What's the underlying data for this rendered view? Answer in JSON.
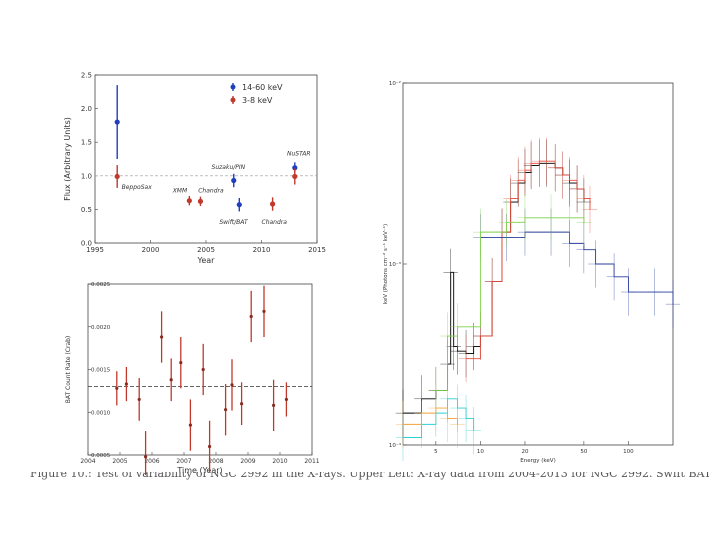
{
  "chart_data": [
    {
      "type": "scatter",
      "xlabel": "Year",
      "ylabel": "Flux (Arbitrary Units)",
      "xlim": [
        1995,
        2015
      ],
      "ylim": [
        0,
        2.5
      ],
      "x_ticks": [
        "1995",
        "2000",
        "2005",
        "2010",
        "2015"
      ],
      "y_ticks": [
        "0.0",
        "0.5",
        "1.0",
        "1.5",
        "2.0",
        "2.5"
      ],
      "reference_line": 1.0,
      "legend": "top-right",
      "series": [
        {
          "name": "14-60 keV",
          "color": "#1f3fbf",
          "points": [
            {
              "x": 1997,
              "y": 1.8,
              "err": 0.55
            },
            {
              "x": 2007.5,
              "y": 0.93,
              "err": 0.1
            },
            {
              "x": 2008,
              "y": 0.57,
              "err": 0.1
            },
            {
              "x": 2013,
              "y": 1.12,
              "err": 0.08
            }
          ]
        },
        {
          "name": "3-8 keV",
          "color": "#c0392b",
          "points": [
            {
              "x": 1997,
              "y": 0.99,
              "err": 0.17
            },
            {
              "x": 2003.5,
              "y": 0.63,
              "err": 0.07
            },
            {
              "x": 2004.5,
              "y": 0.62,
              "err": 0.07
            },
            {
              "x": 2011,
              "y": 0.58,
              "err": 0.1
            },
            {
              "x": 2013,
              "y": 0.99,
              "err": 0.12
            }
          ]
        }
      ],
      "annotations": [
        {
          "text": "BeppoSax",
          "x": 1997.4,
          "y": 0.8
        },
        {
          "text": "XMM",
          "x": 2002.0,
          "y": 0.75
        },
        {
          "text": "Chandra",
          "x": 2004.3,
          "y": 0.75
        },
        {
          "text": "Suzaku/PIN",
          "x": 2005.5,
          "y": 1.1
        },
        {
          "text": "Swift/BAT",
          "x": 2006.2,
          "y": 0.28
        },
        {
          "text": "Chandra",
          "x": 2010.0,
          "y": 0.28
        },
        {
          "text": "NuSTAR",
          "x": 2012.3,
          "y": 1.3
        }
      ]
    },
    {
      "type": "scatter",
      "xlabel": "Time (Year)",
      "ylabel": "BAT Count Rate (Crab)",
      "xlim": [
        2004,
        2011
      ],
      "ylim": [
        0.0005,
        0.0025
      ],
      "x_ticks": [
        "2004",
        "2005",
        "2006",
        "2007",
        "2008",
        "2009",
        "2010",
        "2011"
      ],
      "y_ticks": [
        "0.0005",
        "0.0010",
        "0.0015",
        "0.0020",
        "0.0025"
      ],
      "reference_line": 0.0013,
      "series": [
        {
          "name": "",
          "color": "#c0392b",
          "points": [
            {
              "x": 2004.9,
              "y": 0.00128,
              "err": 0.0002
            },
            {
              "x": 2005.2,
              "y": 0.00133,
              "err": 0.0002
            },
            {
              "x": 2005.6,
              "y": 0.00115,
              "err": 0.00025
            },
            {
              "x": 2005.8,
              "y": 0.00048,
              "err": 0.0003
            },
            {
              "x": 2006.3,
              "y": 0.00188,
              "err": 0.0003
            },
            {
              "x": 2006.6,
              "y": 0.00138,
              "err": 0.00025
            },
            {
              "x": 2006.9,
              "y": 0.00158,
              "err": 0.0003
            },
            {
              "x": 2007.2,
              "y": 0.00085,
              "err": 0.0003
            },
            {
              "x": 2007.6,
              "y": 0.0015,
              "err": 0.0003
            },
            {
              "x": 2007.8,
              "y": 0.0006,
              "err": 0.0003
            },
            {
              "x": 2008.3,
              "y": 0.00103,
              "err": 0.0003
            },
            {
              "x": 2008.5,
              "y": 0.00132,
              "err": 0.0003
            },
            {
              "x": 2008.8,
              "y": 0.0011,
              "err": 0.00025
            },
            {
              "x": 2009.1,
              "y": 0.00212,
              "err": 0.0003
            },
            {
              "x": 2009.5,
              "y": 0.00218,
              "err": 0.0003
            },
            {
              "x": 2009.8,
              "y": 0.00108,
              "err": 0.0003
            },
            {
              "x": 2010.2,
              "y": 0.00115,
              "err": 0.0002
            }
          ]
        }
      ]
    },
    {
      "type": "line",
      "xlabel": "Energy (keV)",
      "ylabel": "keV (Photons cm⁻² s⁻¹ keV⁻¹)",
      "xscale": "log",
      "yscale": "log",
      "xlim": [
        3,
        200
      ],
      "ylim": [
        0.0001,
        0.01
      ],
      "x_ticks": [
        "5",
        "10",
        "20",
        "50",
        "100"
      ],
      "y_ticks": [
        "10⁻⁴",
        "10⁻³",
        "10⁻²"
      ],
      "series": [
        {
          "name": "",
          "color": "#000000",
          "x": [
            3,
            4,
            5,
            6,
            6.3,
            6.6,
            7,
            8,
            9,
            10,
            12,
            14,
            16,
            18,
            20,
            22,
            25,
            28,
            32,
            36,
            40,
            45,
            50
          ],
          "y": [
            0.00015,
            0.00018,
            0.0002,
            0.00028,
            0.0009,
            0.00035,
            0.00033,
            0.00032,
            0.00035,
            0.0004,
            0.0008,
            0.0015,
            0.0022,
            0.0028,
            0.0032,
            0.0035,
            0.0036,
            0.0036,
            0.0034,
            0.0031,
            0.0028,
            0.0026,
            0.0022
          ]
        },
        {
          "name": "",
          "color": "#e74c3c",
          "x": [
            8,
            10,
            12,
            14,
            16,
            18,
            20,
            22,
            25,
            28,
            32,
            36,
            40,
            45,
            50,
            55
          ],
          "y": [
            0.0003,
            0.0004,
            0.0008,
            0.0015,
            0.0023,
            0.0029,
            0.0033,
            0.0036,
            0.0037,
            0.0037,
            0.0034,
            0.0031,
            0.0029,
            0.0026,
            0.0023,
            0.002
          ]
        },
        {
          "name": "",
          "color": "#2b3f9e",
          "x": [
            10,
            15,
            20,
            30,
            40,
            50,
            60,
            80,
            100,
            150,
            200
          ],
          "y": [
            0.0014,
            0.0014,
            0.0015,
            0.0015,
            0.0013,
            0.0012,
            0.001,
            0.00085,
            0.0007,
            0.0007,
            0.0006
          ]
        },
        {
          "name": "",
          "color": "#7fd04a",
          "x": [
            5,
            6,
            7,
            10,
            15,
            20,
            30,
            40,
            50
          ],
          "y": [
            0.0002,
            0.0004,
            0.00045,
            0.0015,
            0.0017,
            0.0018,
            0.0018,
            0.0018,
            0.0017
          ]
        },
        {
          "name": "",
          "color": "#2ecfcf",
          "x": [
            3,
            4,
            5,
            6,
            7,
            8,
            9
          ],
          "y": [
            0.00011,
            0.00013,
            0.00015,
            0.00018,
            0.00016,
            0.00014,
            0.00012
          ]
        },
        {
          "name": "",
          "color": "#f3a43b",
          "x": [
            3,
            4,
            5,
            6,
            7
          ],
          "y": [
            0.00013,
            0.00015,
            0.00016,
            0.00014,
            0.00013
          ]
        }
      ]
    }
  ],
  "caption": "Figure 10.: Test of variability of NGC 2992 in the X-rays. Upper Left: X-ray data from 2004-2013 for NGC 2992. Swift BAT"
}
